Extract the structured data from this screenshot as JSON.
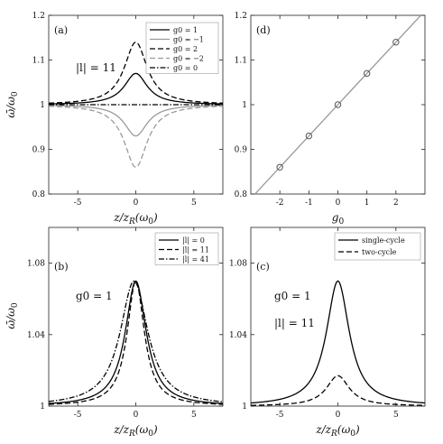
{
  "chart_data": [
    {
      "panel": "(a)",
      "type": "line",
      "annotation": "|l| = 11",
      "xlabel": "z/z_R(ω0)",
      "ylabel": "ω̄/ω0",
      "xlim": [
        -7.5,
        7.5
      ],
      "ylim": [
        0.8,
        1.2
      ],
      "xticks": [
        -5,
        0,
        5
      ],
      "yticks": [
        0.8,
        0.9,
        1,
        1.1,
        1.2
      ],
      "xtick_labels": [
        "-5",
        "0",
        "5"
      ],
      "ytick_labels": [
        "0.8",
        "0.9",
        "1",
        "1.1",
        "1.2"
      ],
      "legend_position": "top-right",
      "series": [
        {
          "name": "g0 = 1",
          "peak": 1.07,
          "width": 1.2,
          "color": "#000000",
          "dash": "solid"
        },
        {
          "name": "g0 = −1",
          "peak": 0.93,
          "width": 1.2,
          "color": "#9a9a9a",
          "dash": "solid"
        },
        {
          "name": "g0 = 2",
          "peak": 1.14,
          "width": 1.2,
          "color": "#000000",
          "dash": "dashed"
        },
        {
          "name": "g0 = −2",
          "peak": 0.86,
          "width": 1.2,
          "color": "#9a9a9a",
          "dash": "dashed"
        },
        {
          "name": "g0 = 0",
          "peak": 1.0,
          "width": 1.2,
          "color": "#000000",
          "dash": "dashdot"
        }
      ]
    },
    {
      "panel": "(d)",
      "type": "scatter",
      "xlabel": "g0",
      "ylabel": "",
      "xlim": [
        -3,
        3
      ],
      "ylim": [
        0.8,
        1.2
      ],
      "xticks": [
        -2,
        -1,
        0,
        1,
        2
      ],
      "yticks": [
        0.8,
        0.9,
        1,
        1.1,
        1.2
      ],
      "xtick_labels": [
        "-2",
        "-1",
        "0",
        "1",
        "2"
      ],
      "ytick_labels": [
        "0.8",
        "0.9",
        "1",
        "1.1",
        "1.2"
      ],
      "points": [
        [
          -2,
          0.86
        ],
        [
          -1,
          0.93
        ],
        [
          0,
          1.0
        ],
        [
          1,
          1.07
        ],
        [
          2,
          1.14
        ]
      ],
      "fit_line": {
        "slope": 0.07,
        "intercept": 1.0
      }
    },
    {
      "panel": "(b)",
      "type": "line",
      "annotation": "g0 = 1",
      "xlabel": "z/z_R(ω0)",
      "ylabel": "ω̄/ω0",
      "xlim": [
        -7.5,
        7.5
      ],
      "ylim": [
        1.0,
        1.1
      ],
      "xticks": [
        -5,
        0,
        5
      ],
      "yticks": [
        1,
        1.04,
        1.08
      ],
      "xtick_labels": [
        "-5",
        "0",
        "5"
      ],
      "ytick_labels": [
        "1",
        "1.04",
        "1.08"
      ],
      "legend_position": "top-right",
      "series": [
        {
          "name": "|l| = 0",
          "peak": 1.07,
          "width": 1.1,
          "center": 0.0,
          "dash": "solid"
        },
        {
          "name": "|l| = 11",
          "peak": 1.07,
          "width": 0.9,
          "center": 0.0,
          "dash": "dashed"
        },
        {
          "name": "|l| = 41",
          "peak": 1.07,
          "width": 1.45,
          "center": -0.15,
          "dash": "dashdot"
        }
      ]
    },
    {
      "panel": "(c)",
      "type": "line",
      "annotation": "g0 = 1",
      "annotation2": "|l| = 11",
      "xlabel": "z/z_R(ω0)",
      "ylabel": "",
      "xlim": [
        -7.5,
        7.5
      ],
      "ylim": [
        1.0,
        1.1
      ],
      "xticks": [
        -5,
        0,
        5
      ],
      "yticks": [
        1,
        1.04,
        1.08
      ],
      "xtick_labels": [
        "-5",
        "0",
        "5"
      ],
      "ytick_labels": [
        "1",
        "1.04",
        "1.08"
      ],
      "legend_position": "top-right",
      "series": [
        {
          "name": "single-cycle",
          "peak": 1.07,
          "width": 1.2,
          "dash": "solid"
        },
        {
          "name": "two-cycle",
          "peak": 1.017,
          "width": 1.2,
          "dash": "dashed"
        }
      ]
    }
  ]
}
